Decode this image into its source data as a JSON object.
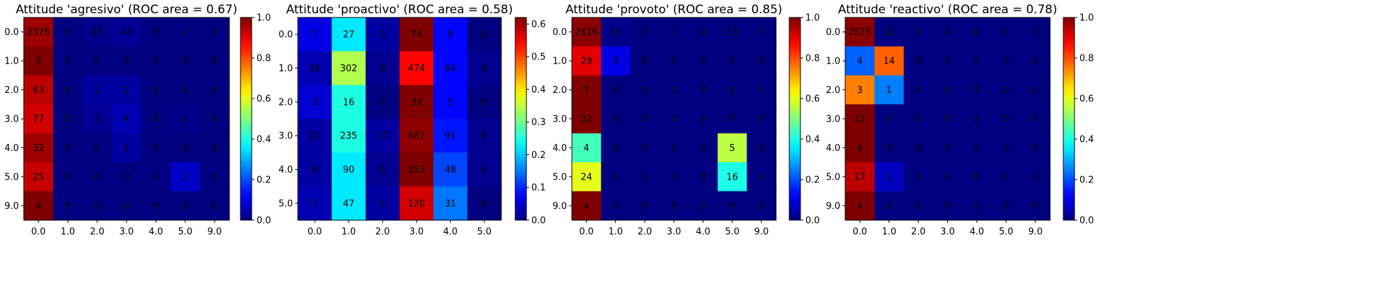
{
  "colormap": "jet",
  "chart_data": [
    {
      "type": "heatmap",
      "title": "Attitude 'agresivo' (ROC area = 0.67)",
      "x_categories": [
        "0.0",
        "1.0",
        "2.0",
        "3.0",
        "4.0",
        "5.0",
        "9.0"
      ],
      "y_categories": [
        "0.0",
        "1.0",
        "2.0",
        "3.0",
        "4.0",
        "5.0",
        "9.0"
      ],
      "values": [
        [
          2376,
          0,
          23,
          43,
          0,
          2,
          0
        ],
        [
          5,
          0,
          0,
          0,
          0,
          0,
          0
        ],
        [
          63,
          0,
          2,
          2,
          0,
          0,
          0
        ],
        [
          77,
          0,
          2,
          4,
          0,
          1,
          0
        ],
        [
          32,
          0,
          0,
          1,
          0,
          0,
          0
        ],
        [
          25,
          0,
          0,
          0,
          0,
          2,
          0
        ],
        [
          4,
          0,
          0,
          0,
          0,
          0,
          0
        ]
      ],
      "normalized": [
        [
          0.97,
          0.0,
          0.01,
          0.02,
          0.0,
          0.0,
          0.0
        ],
        [
          1.0,
          0.0,
          0.0,
          0.0,
          0.0,
          0.0,
          0.0
        ],
        [
          0.94,
          0.0,
          0.03,
          0.03,
          0.0,
          0.0,
          0.0
        ],
        [
          0.92,
          0.0,
          0.02,
          0.05,
          0.0,
          0.01,
          0.0
        ],
        [
          0.97,
          0.0,
          0.0,
          0.03,
          0.0,
          0.0,
          0.0
        ],
        [
          0.93,
          0.0,
          0.0,
          0.0,
          0.0,
          0.07,
          0.0
        ],
        [
          1.0,
          0.0,
          0.0,
          0.0,
          0.0,
          0.0,
          0.0
        ]
      ],
      "colorbar": {
        "min": 0.0,
        "max": 1.0,
        "ticks": [
          "0.0",
          "0.2",
          "0.4",
          "0.6",
          "0.8",
          "1.0"
        ]
      }
    },
    {
      "type": "heatmap",
      "title": "Attitude 'proactivo' (ROC area = 0.58)",
      "x_categories": [
        "0.0",
        "1.0",
        "2.0",
        "3.0",
        "4.0",
        "5.0"
      ],
      "y_categories": [
        "0.0",
        "1.0",
        "2.0",
        "3.0",
        "4.0",
        "5.0"
      ],
      "values": [
        [
          7,
          27,
          3,
          74,
          9,
          0
        ],
        [
          26,
          302,
          8,
          474,
          66,
          9
        ],
        [
          3,
          16,
          0,
          39,
          5,
          0
        ],
        [
          21,
          235,
          17,
          587,
          91,
          6
        ],
        [
          8,
          90,
          5,
          253,
          48,
          4
        ],
        [
          7,
          47,
          5,
          120,
          31,
          0
        ]
      ],
      "normalized": [
        [
          0.06,
          0.22,
          0.02,
          0.62,
          0.08,
          0.0
        ],
        [
          0.03,
          0.34,
          0.01,
          0.54,
          0.08,
          0.01
        ],
        [
          0.05,
          0.25,
          0.0,
          0.62,
          0.08,
          0.0
        ],
        [
          0.02,
          0.25,
          0.02,
          0.61,
          0.09,
          0.01
        ],
        [
          0.02,
          0.22,
          0.01,
          0.62,
          0.12,
          0.01
        ],
        [
          0.03,
          0.22,
          0.02,
          0.57,
          0.15,
          0.0
        ]
      ],
      "colorbar": {
        "min": 0.0,
        "max": 0.62,
        "ticks": [
          "0.0",
          "0.1",
          "0.2",
          "0.3",
          "0.4",
          "0.5",
          "0.6"
        ]
      }
    },
    {
      "type": "heatmap",
      "title": "Attitude 'provoto' (ROC area = 0.85)",
      "x_categories": [
        "0.0",
        "1.0",
        "2.0",
        "3.0",
        "4.0",
        "5.0",
        "9.0"
      ],
      "y_categories": [
        "0.0",
        "1.0",
        "2.0",
        "3.0",
        "4.0",
        "5.0",
        "9.0"
      ],
      "values": [
        [
          2616,
          15,
          0,
          1,
          0,
          13,
          0
        ],
        [
          28,
          3,
          0,
          0,
          0,
          0,
          0
        ],
        [
          7,
          0,
          0,
          0,
          0,
          0,
          0
        ],
        [
          22,
          0,
          0,
          0,
          0,
          0,
          0
        ],
        [
          4,
          0,
          0,
          0,
          0,
          5,
          0
        ],
        [
          24,
          0,
          0,
          0,
          0,
          16,
          0
        ],
        [
          4,
          0,
          0,
          0,
          0,
          0,
          0
        ]
      ],
      "normalized": [
        [
          0.99,
          0.01,
          0.0,
          0.0,
          0.0,
          0.0,
          0.0
        ],
        [
          0.9,
          0.1,
          0.0,
          0.0,
          0.0,
          0.0,
          0.0
        ],
        [
          1.0,
          0.0,
          0.0,
          0.0,
          0.0,
          0.0,
          0.0
        ],
        [
          1.0,
          0.0,
          0.0,
          0.0,
          0.0,
          0.0,
          0.0
        ],
        [
          0.44,
          0.0,
          0.0,
          0.0,
          0.0,
          0.56,
          0.0
        ],
        [
          0.6,
          0.0,
          0.0,
          0.0,
          0.0,
          0.4,
          0.0
        ],
        [
          1.0,
          0.0,
          0.0,
          0.0,
          0.0,
          0.0,
          0.0
        ]
      ],
      "colorbar": {
        "min": 0.0,
        "max": 1.0,
        "ticks": [
          "0.0",
          "0.2",
          "0.4",
          "0.6",
          "0.8",
          "1.0"
        ]
      }
    },
    {
      "type": "heatmap",
      "title": "Attitude 'reactivo' (ROC area = 0.78)",
      "x_categories": [
        "0.0",
        "1.0",
        "2.0",
        "3.0",
        "4.0",
        "5.0",
        "9.0"
      ],
      "y_categories": [
        "0.0",
        "1.0",
        "2.0",
        "3.0",
        "4.0",
        "5.0",
        "9.0"
      ],
      "values": [
        [
          2575,
          11,
          0,
          4,
          0,
          0,
          0
        ],
        [
          4,
          14,
          0,
          0,
          0,
          0,
          0
        ],
        [
          3,
          1,
          0,
          0,
          0,
          0,
          0
        ],
        [
          22,
          0,
          0,
          0,
          0,
          0,
          0
        ],
        [
          6,
          0,
          0,
          0,
          0,
          0,
          0
        ],
        [
          17,
          1,
          0,
          0,
          0,
          0,
          0
        ],
        [
          4,
          0,
          0,
          0,
          0,
          0,
          0
        ]
      ],
      "normalized": [
        [
          0.99,
          0.0,
          0.0,
          0.0,
          0.0,
          0.0,
          0.0
        ],
        [
          0.22,
          0.78,
          0.0,
          0.0,
          0.0,
          0.0,
          0.0
        ],
        [
          0.75,
          0.25,
          0.0,
          0.0,
          0.0,
          0.0,
          0.0
        ],
        [
          1.0,
          0.0,
          0.0,
          0.0,
          0.0,
          0.0,
          0.0
        ],
        [
          1.0,
          0.0,
          0.0,
          0.0,
          0.0,
          0.0,
          0.0
        ],
        [
          0.94,
          0.06,
          0.0,
          0.0,
          0.0,
          0.0,
          0.0
        ],
        [
          1.0,
          0.0,
          0.0,
          0.0,
          0.0,
          0.0,
          0.0
        ]
      ],
      "colorbar": {
        "min": 0.0,
        "max": 1.0,
        "ticks": [
          "0.0",
          "0.2",
          "0.4",
          "0.6",
          "0.8",
          "1.0"
        ]
      }
    }
  ]
}
